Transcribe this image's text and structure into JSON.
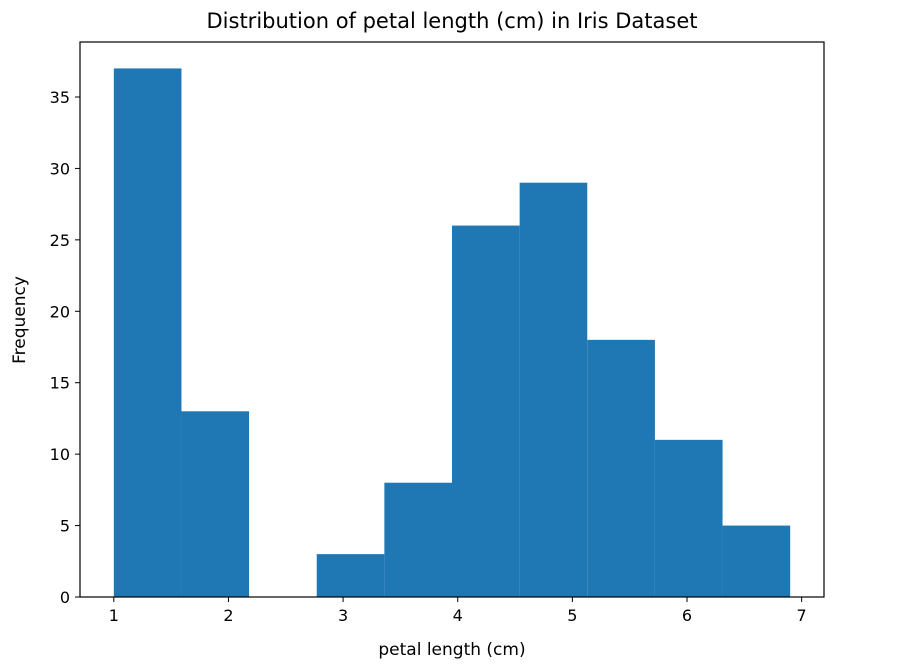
{
  "chart_data": {
    "type": "bar",
    "title": "Distribution of petal length (cm) in Iris Dataset",
    "xlabel": "petal length (cm)",
    "ylabel": "Frequency",
    "xlim": [
      0.705,
      7.195
    ],
    "ylim": [
      0,
      38.85
    ],
    "xticks": [
      1,
      2,
      3,
      4,
      5,
      6,
      7
    ],
    "yticks": [
      0,
      5,
      10,
      15,
      20,
      25,
      30,
      35
    ],
    "bin_edges": [
      1.0,
      1.59,
      2.18,
      2.77,
      3.36,
      3.95,
      4.54,
      5.13,
      5.72,
      6.31,
      6.9
    ],
    "values": [
      37,
      13,
      0,
      3,
      8,
      26,
      29,
      18,
      11,
      5
    ],
    "grid": false,
    "color": "#1f77b4"
  }
}
